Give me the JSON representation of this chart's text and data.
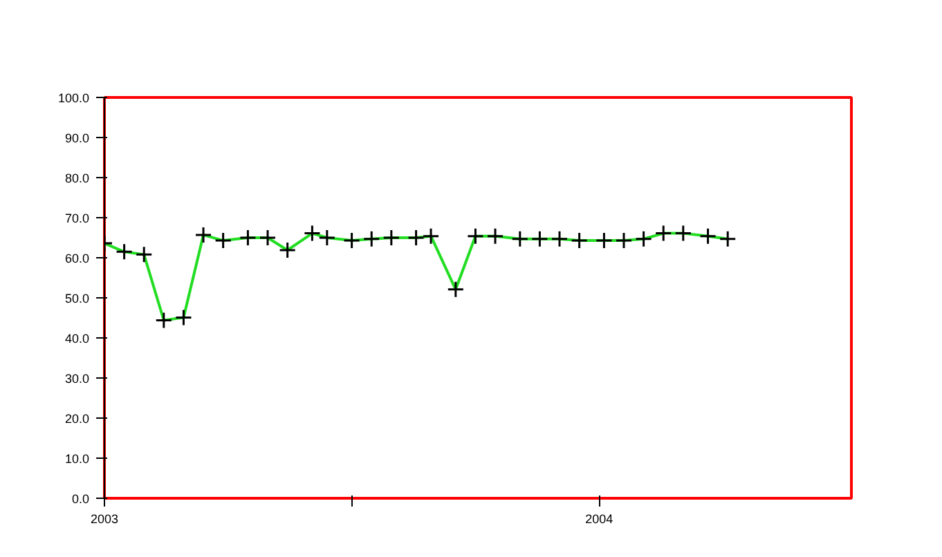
{
  "chart_data": {
    "type": "line",
    "marker": "cross",
    "line_style": "solid",
    "x": [
      2003.0,
      2003.04,
      2003.08,
      2003.12,
      2003.16,
      2003.2,
      2003.24,
      2003.29,
      2003.33,
      2003.37,
      2003.42,
      2003.45,
      2003.5,
      2003.54,
      2003.58,
      2003.63,
      2003.66,
      2003.71,
      2003.75,
      2003.79,
      2003.84,
      2003.88,
      2003.92,
      2003.96,
      2004.01,
      2004.05,
      2004.09,
      2004.13,
      2004.17,
      2004.22,
      2004.26
    ],
    "series": [
      {
        "color": "#22dd22",
        "values": [
          63.6,
          61.5,
          60.8,
          44.4,
          45.1,
          65.7,
          64.3,
          65.0,
          65.0,
          61.9,
          66.1,
          65.0,
          64.3,
          64.7,
          65.0,
          65.0,
          65.4,
          52.1,
          65.4,
          65.4,
          64.7,
          64.7,
          64.7,
          64.3,
          64.3,
          64.3,
          64.7,
          66.1,
          66.1,
          65.4,
          64.7
        ]
      }
    ],
    "xlim": [
      2003.0,
      2004.51
    ],
    "xticks": [
      2003,
      {
        "value": 2003.5,
        "label": null
      },
      2004
    ],
    "ylim": [
      0,
      100
    ],
    "yticks": [
      {
        "value": 0,
        "label": "0.0"
      },
      {
        "value": 10,
        "label": "10.0"
      },
      {
        "value": 20,
        "label": "20.0"
      },
      {
        "value": 30,
        "label": "30.0"
      },
      {
        "value": 40,
        "label": "40.0"
      },
      {
        "value": 50,
        "label": "50.0"
      },
      {
        "value": 60,
        "label": "60.0"
      },
      {
        "value": 70,
        "label": "70.0"
      },
      {
        "value": 80,
        "label": "80.0"
      },
      {
        "value": 90,
        "label": "90.0"
      },
      {
        "value": 100,
        "label": "100.0"
      }
    ]
  }
}
